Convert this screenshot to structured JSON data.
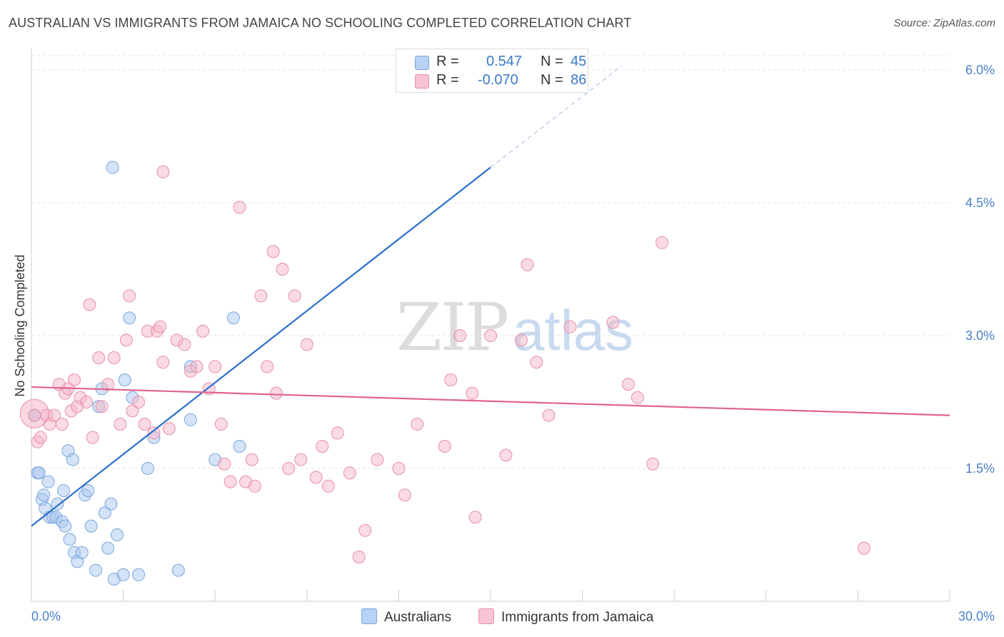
{
  "title": "AUSTRALIAN VS IMMIGRANTS FROM JAMAICA NO SCHOOLING COMPLETED CORRELATION CHART",
  "source": "Source: ZipAtlas.com",
  "watermark": {
    "zip": "ZIP",
    "atlas": "atlas"
  },
  "legend": {
    "r_label": "R =",
    "n_label": "N =",
    "series": [
      {
        "r": "0.547",
        "n": "45"
      },
      {
        "r": "-0.070",
        "n": "86"
      }
    ]
  },
  "chart_data": {
    "type": "scatter",
    "title": "AUSTRALIAN VS IMMIGRANTS FROM JAMAICA NO SCHOOLING COMPLETED CORRELATION CHART",
    "xlabel": "",
    "ylabel": "No Schooling Completed",
    "xlim": [
      0,
      30
    ],
    "ylim": [
      0,
      6.3
    ],
    "x_tick_labels": [
      "0.0%",
      "30.0%"
    ],
    "y_ticks": [
      1.5,
      3.0,
      4.5,
      6.0
    ],
    "y_tick_labels": [
      "1.5%",
      "3.0%",
      "4.5%",
      "6.0%"
    ],
    "grid": true,
    "legend_position": "top-center",
    "series": [
      {
        "name": "Australians",
        "color": "#a9c8f0",
        "stroke": "#7aa6dd",
        "line_color": "#2a6fcc",
        "trend": {
          "x0": 0,
          "y0": 0.85,
          "x1": 15,
          "y1": 4.9,
          "dash_to_x": 19.3,
          "dash_to_y": 6.05
        },
        "points": [
          [
            0.1,
            2.1
          ],
          [
            0.2,
            1.45
          ],
          [
            0.25,
            1.45
          ],
          [
            0.35,
            1.15
          ],
          [
            0.4,
            1.2
          ],
          [
            0.45,
            1.05
          ],
          [
            0.55,
            1.35
          ],
          [
            0.6,
            0.95
          ],
          [
            0.7,
            0.95
          ],
          [
            0.8,
            0.95
          ],
          [
            0.85,
            1.1
          ],
          [
            1.0,
            0.9
          ],
          [
            1.05,
            1.25
          ],
          [
            1.1,
            0.85
          ],
          [
            1.2,
            1.7
          ],
          [
            1.25,
            0.7
          ],
          [
            1.35,
            1.6
          ],
          [
            1.4,
            0.55
          ],
          [
            1.5,
            0.45
          ],
          [
            1.65,
            0.55
          ],
          [
            1.75,
            1.2
          ],
          [
            1.85,
            1.25
          ],
          [
            1.95,
            0.85
          ],
          [
            2.1,
            0.35
          ],
          [
            2.2,
            2.2
          ],
          [
            2.3,
            2.4
          ],
          [
            2.4,
            1.0
          ],
          [
            2.5,
            0.6
          ],
          [
            2.6,
            1.1
          ],
          [
            2.7,
            0.25
          ],
          [
            2.8,
            0.75
          ],
          [
            3.0,
            0.3
          ],
          [
            3.05,
            2.5
          ],
          [
            3.2,
            3.2
          ],
          [
            3.3,
            2.3
          ],
          [
            3.5,
            0.3
          ],
          [
            3.8,
            1.5
          ],
          [
            4.0,
            1.85
          ],
          [
            2.65,
            4.9
          ],
          [
            4.8,
            0.35
          ],
          [
            5.2,
            2.05
          ],
          [
            5.2,
            2.65
          ],
          [
            6.0,
            1.6
          ],
          [
            6.6,
            3.2
          ],
          [
            6.8,
            1.75
          ]
        ]
      },
      {
        "name": "Immigrants from Jamaica",
        "color": "#f6b6c8",
        "stroke": "#e88faa",
        "line_color": "#e0648f",
        "trend": {
          "x0": 0,
          "y0": 2.42,
          "x1": 30,
          "y1": 2.1
        },
        "points": [
          [
            0.1,
            2.1
          ],
          [
            0.2,
            1.8
          ],
          [
            0.3,
            1.85
          ],
          [
            0.5,
            2.1
          ],
          [
            0.6,
            2.0
          ],
          [
            0.75,
            2.1
          ],
          [
            0.9,
            2.45
          ],
          [
            1.0,
            2.0
          ],
          [
            1.1,
            2.35
          ],
          [
            1.2,
            2.4
          ],
          [
            1.3,
            2.15
          ],
          [
            1.4,
            2.5
          ],
          [
            1.5,
            2.2
          ],
          [
            1.6,
            2.3
          ],
          [
            1.8,
            2.25
          ],
          [
            1.9,
            3.35
          ],
          [
            2.0,
            1.85
          ],
          [
            2.2,
            2.75
          ],
          [
            2.3,
            2.2
          ],
          [
            2.5,
            2.45
          ],
          [
            2.7,
            2.75
          ],
          [
            2.9,
            2.0
          ],
          [
            3.1,
            2.95
          ],
          [
            3.2,
            3.45
          ],
          [
            3.3,
            2.15
          ],
          [
            3.5,
            2.25
          ],
          [
            3.7,
            2.0
          ],
          [
            3.8,
            3.05
          ],
          [
            4.0,
            1.9
          ],
          [
            4.1,
            3.05
          ],
          [
            4.2,
            3.1
          ],
          [
            4.3,
            2.7
          ],
          [
            4.5,
            1.95
          ],
          [
            4.75,
            2.95
          ],
          [
            5.0,
            2.9
          ],
          [
            5.2,
            2.6
          ],
          [
            5.4,
            2.65
          ],
          [
            5.6,
            3.05
          ],
          [
            5.8,
            2.4
          ],
          [
            6.0,
            2.65
          ],
          [
            6.2,
            2.0
          ],
          [
            6.3,
            1.55
          ],
          [
            6.5,
            1.35
          ],
          [
            6.8,
            4.45
          ],
          [
            7.0,
            1.35
          ],
          [
            7.2,
            1.6
          ],
          [
            7.3,
            1.3
          ],
          [
            7.5,
            3.45
          ],
          [
            7.7,
            2.65
          ],
          [
            7.9,
            3.95
          ],
          [
            8.0,
            2.35
          ],
          [
            8.2,
            3.75
          ],
          [
            8.4,
            1.5
          ],
          [
            8.6,
            3.45
          ],
          [
            8.8,
            1.6
          ],
          [
            4.3,
            4.85
          ],
          [
            9.0,
            2.9
          ],
          [
            9.3,
            1.4
          ],
          [
            9.5,
            1.75
          ],
          [
            9.7,
            1.3
          ],
          [
            10.0,
            1.9
          ],
          [
            10.4,
            1.45
          ],
          [
            10.7,
            0.5
          ],
          [
            10.9,
            0.8
          ],
          [
            11.3,
            1.6
          ],
          [
            12.0,
            1.5
          ],
          [
            12.2,
            1.2
          ],
          [
            12.6,
            2.0
          ],
          [
            13.5,
            1.75
          ],
          [
            13.7,
            2.5
          ],
          [
            14.0,
            3.0
          ],
          [
            14.4,
            2.35
          ],
          [
            14.5,
            0.95
          ],
          [
            15.0,
            3.0
          ],
          [
            15.5,
            1.65
          ],
          [
            16.0,
            2.95
          ],
          [
            16.2,
            3.8
          ],
          [
            16.5,
            2.7
          ],
          [
            16.9,
            2.1
          ],
          [
            17.6,
            3.1
          ],
          [
            19.0,
            3.15
          ],
          [
            19.5,
            2.45
          ],
          [
            19.8,
            2.3
          ],
          [
            20.3,
            1.55
          ],
          [
            20.6,
            4.05
          ],
          [
            27.2,
            0.6
          ]
        ]
      }
    ]
  }
}
